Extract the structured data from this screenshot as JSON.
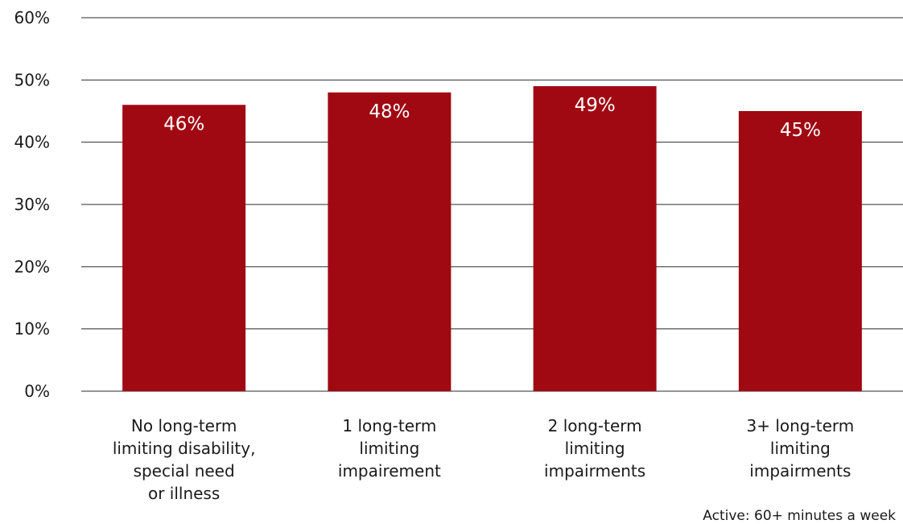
{
  "chart_data": {
    "type": "bar",
    "categories": [
      [
        "No long-term",
        "limiting disability,",
        "special need",
        "or illness"
      ],
      [
        "1 long-term",
        "limiting",
        "impairement"
      ],
      [
        "2 long-term",
        "limiting",
        "impairments"
      ],
      [
        "3+ long-term",
        "limiting",
        "impairments"
      ]
    ],
    "values": [
      46,
      48,
      49,
      45
    ],
    "value_labels": [
      "46%",
      "48%",
      "49%",
      "45%"
    ],
    "yticks": [
      "0%",
      "10%",
      "20%",
      "30%",
      "40%",
      "50%",
      "60%"
    ],
    "ylim": [
      0,
      60
    ],
    "grid": true,
    "bar_color": "#a00912",
    "footnote": "Active: 60+ minutes a week"
  }
}
